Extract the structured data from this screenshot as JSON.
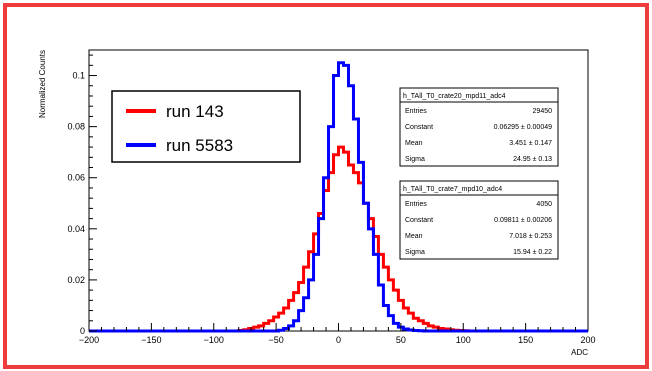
{
  "chart_data": {
    "type": "line",
    "subtype": "step-histogram",
    "xlabel": "ADC",
    "ylabel": "Normalized Counts",
    "xlim": [
      -200,
      200
    ],
    "ylim": [
      0,
      0.11
    ],
    "x_ticks": [
      -200,
      -150,
      -100,
      -50,
      0,
      50,
      100,
      150,
      200
    ],
    "y_ticks": [
      0,
      0.02,
      0.04,
      0.06,
      0.08,
      0.1
    ],
    "x_tick_labels": [
      "−200",
      "−150",
      "−100",
      "−50",
      "0",
      "50",
      "100",
      "150",
      "200"
    ],
    "y_tick_labels": [
      "0",
      "0.02",
      "0.04",
      "0.06",
      "0.08",
      "0.1"
    ],
    "bin_width": 4,
    "series": [
      {
        "name": "run 143",
        "color": "#ff0000",
        "fit": {
          "constant": 0.06295,
          "mean": 3.451,
          "sigma": 24.95
        },
        "x": [
          -200,
          -196,
          -192,
          -188,
          -184,
          -180,
          -176,
          -172,
          -168,
          -164,
          -160,
          -156,
          -152,
          -148,
          -144,
          -140,
          -136,
          -132,
          -128,
          -124,
          -120,
          -116,
          -112,
          -108,
          -104,
          -100,
          -96,
          -92,
          -88,
          -84,
          -80,
          -76,
          -72,
          -68,
          -64,
          -60,
          -56,
          -52,
          -48,
          -44,
          -40,
          -36,
          -32,
          -28,
          -24,
          -20,
          -16,
          -12,
          -8,
          -4,
          0,
          4,
          8,
          12,
          16,
          20,
          24,
          28,
          32,
          36,
          40,
          44,
          48,
          52,
          56,
          60,
          64,
          68,
          72,
          76,
          80,
          84,
          88,
          92,
          96,
          100,
          104,
          108,
          112,
          116,
          120,
          124,
          128,
          132,
          136,
          140,
          144,
          148,
          152,
          156,
          160,
          164,
          168,
          172,
          176,
          180,
          184,
          188,
          192,
          196,
          200
        ],
        "values": [
          0,
          0,
          0,
          0,
          0,
          0,
          0,
          0,
          0,
          0,
          0,
          0,
          0,
          0,
          0,
          0,
          0,
          0,
          0,
          0,
          0,
          0,
          0,
          0,
          0,
          0,
          0,
          0,
          0,
          0,
          0.0002,
          0.0005,
          0.001,
          0.0015,
          0.002,
          0.003,
          0.004,
          0.0055,
          0.007,
          0.009,
          0.012,
          0.015,
          0.019,
          0.025,
          0.031,
          0.038,
          0.046,
          0.055,
          0.062,
          0.069,
          0.072,
          0.07,
          0.065,
          0.062,
          0.058,
          0.05,
          0.044,
          0.037,
          0.03,
          0.025,
          0.02,
          0.016,
          0.012,
          0.009,
          0.007,
          0.005,
          0.004,
          0.003,
          0.002,
          0.0015,
          0.001,
          0.0008,
          0.0005,
          0.0003,
          0.0002,
          0.0001,
          0,
          0,
          0,
          0,
          0,
          0,
          0,
          0,
          0,
          0,
          0,
          0,
          0,
          0,
          0,
          0,
          0,
          0,
          0,
          0,
          0,
          0,
          0,
          0,
          0
        ]
      },
      {
        "name": "run 5583",
        "color": "#0000ff",
        "fit": {
          "constant": 0.09811,
          "mean": 7.018,
          "sigma": 15.94
        },
        "x": [
          -200,
          -196,
          -192,
          -188,
          -184,
          -180,
          -176,
          -172,
          -168,
          -164,
          -160,
          -156,
          -152,
          -148,
          -144,
          -140,
          -136,
          -132,
          -128,
          -124,
          -120,
          -116,
          -112,
          -108,
          -104,
          -100,
          -96,
          -92,
          -88,
          -84,
          -80,
          -76,
          -72,
          -68,
          -64,
          -60,
          -56,
          -52,
          -48,
          -44,
          -40,
          -36,
          -32,
          -28,
          -24,
          -20,
          -16,
          -12,
          -8,
          -4,
          0,
          4,
          8,
          12,
          16,
          20,
          24,
          28,
          32,
          36,
          40,
          44,
          48,
          52,
          56,
          60,
          64,
          68,
          72,
          76,
          80,
          84,
          88,
          92,
          96,
          100,
          104,
          108,
          112,
          116,
          120,
          124,
          128,
          132,
          136,
          140,
          144,
          148,
          152,
          156,
          160,
          164,
          168,
          172,
          176,
          180,
          184,
          188,
          192,
          196,
          200
        ],
        "values": [
          0,
          0,
          0,
          0,
          0,
          0,
          0,
          0,
          0,
          0,
          0,
          0,
          0,
          0,
          0,
          0,
          0,
          0,
          0,
          0,
          0,
          0,
          0,
          0,
          0,
          0,
          0,
          0,
          0,
          0,
          0,
          0,
          0,
          0,
          0,
          0,
          0,
          0,
          0.0003,
          0.001,
          0.002,
          0.004,
          0.008,
          0.013,
          0.02,
          0.03,
          0.044,
          0.06,
          0.08,
          0.1,
          0.105,
          0.104,
          0.096,
          0.083,
          0.066,
          0.05,
          0.04,
          0.03,
          0.018,
          0.01,
          0.006,
          0.003,
          0.0015,
          0.0008,
          0.0004,
          0.0002,
          0.0001,
          0,
          0,
          0,
          0,
          0,
          0,
          0,
          0,
          0,
          0,
          0,
          0,
          0,
          0,
          0,
          0,
          0,
          0,
          0,
          0,
          0,
          0,
          0,
          0,
          0,
          0,
          0,
          0,
          0,
          0,
          0,
          0,
          0,
          0
        ]
      }
    ],
    "legend": {
      "placement": "top-left",
      "entries": [
        "run 143",
        "run 5583"
      ]
    },
    "stats_boxes": [
      {
        "title": "h_TAll_T0_crate20_mpd11_adc4",
        "rows": [
          {
            "label": "Entries",
            "value": "29450"
          },
          {
            "label": "Constant",
            "value": "0.06295 ± 0.00049"
          },
          {
            "label": "Mean",
            "value": "3.451 ± 0.147"
          },
          {
            "label": "Sigma",
            "value": "24.95 ± 0.13"
          }
        ]
      },
      {
        "title": "h_TAll_T0_crate7_mpd10_adc4",
        "rows": [
          {
            "label": "Entries",
            "value": "4050"
          },
          {
            "label": "Constant",
            "value": "0.09811 ± 0.00206"
          },
          {
            "label": "Mean",
            "value": "7.018 ± 0.253"
          },
          {
            "label": "Sigma",
            "value": "15.94 ± 0.22"
          }
        ]
      }
    ]
  }
}
